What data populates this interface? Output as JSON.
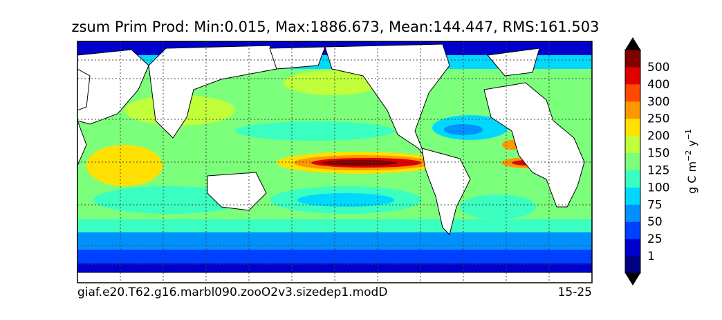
{
  "title": "zsum Prim Prod: Min:0.015, Max:1886.673, Mean:144.447, RMS:161.503",
  "footer": {
    "case_name": "giaf.e20.T62.g16.marbl090.zooO2v3.sizedep1.modD",
    "years": "15-25"
  },
  "chart_data": {
    "type": "heatmap",
    "title": "zsum Prim Prod: Min:0.015, Max:1886.673, Mean:144.447, RMS:161.503",
    "colorbar": {
      "unit_prefix": "g C m",
      "exp1": "−2",
      "unit_mid": " y",
      "exp2": "−1",
      "levels": [
        "1",
        "25",
        "50",
        "75",
        "100",
        "125",
        "150",
        "200",
        "250",
        "300",
        "400",
        "500"
      ],
      "colors": [
        "#000080",
        "#0000cd",
        "#0040ff",
        "#0090ff",
        "#00d8ff",
        "#3affc0",
        "#7cff7a",
        "#c0ff3a",
        "#ffe000",
        "#ff9800",
        "#ff4800",
        "#e00000",
        "#800000"
      ],
      "extend": "both"
    },
    "stats": {
      "min": 0.015,
      "max": 1886.673,
      "mean": 144.447,
      "rms": 161.503
    },
    "grid": true
  }
}
